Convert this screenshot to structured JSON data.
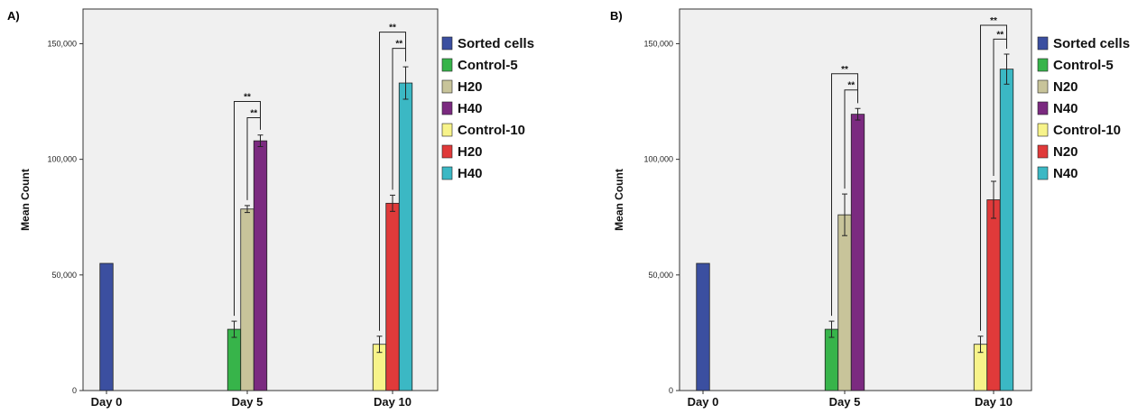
{
  "chart_data": [
    {
      "type": "bar",
      "panel_label": "A)",
      "ylabel": "Mean Count",
      "ylim": [
        0,
        165000
      ],
      "yticks": [
        0,
        50000,
        100000,
        150000
      ],
      "ytick_labels": [
        "0",
        "50,000",
        "100,000",
        "150,000"
      ],
      "categories": [
        "Day 0",
        "Day 5",
        "Day 10"
      ],
      "legend_position": "right",
      "series": [
        {
          "name": "Sorted cells",
          "color": "#3b4fa0",
          "category": "Day 0",
          "value": 55000,
          "err": 0
        },
        {
          "name": "Control-5",
          "color": "#37b44a",
          "category": "Day 5",
          "value": 26500,
          "err": 3500
        },
        {
          "name": "H20",
          "color": "#c8c49a",
          "category": "Day 5",
          "value": 78500,
          "err": 1500
        },
        {
          "name": "H40",
          "color": "#7b2a80",
          "category": "Day 5",
          "value": 108000,
          "err": 2500
        },
        {
          "name": "Control-10",
          "color": "#f7f38a",
          "category": "Day 10",
          "value": 20000,
          "err": 3500
        },
        {
          "name": "H20",
          "color": "#e03a3a",
          "category": "Day 10",
          "value": 81000,
          "err": 3500
        },
        {
          "name": "H40",
          "color": "#3bb8c4",
          "category": "Day 10",
          "value": 133000,
          "err": 7000
        }
      ],
      "annotations": [
        {
          "text": "**",
          "category": "Day 5",
          "from_series": 1,
          "to_series": 3,
          "level": 125000
        },
        {
          "text": "**",
          "category": "Day 5",
          "from_series": 2,
          "to_series": 3,
          "level": 118000
        },
        {
          "text": "**",
          "category": "Day 10",
          "from_series": 4,
          "to_series": 6,
          "level": 155000
        },
        {
          "text": "**",
          "category": "Day 10",
          "from_series": 5,
          "to_series": 6,
          "level": 148000
        }
      ]
    },
    {
      "type": "bar",
      "panel_label": "B)",
      "ylabel": "Mean Count",
      "ylim": [
        0,
        165000
      ],
      "yticks": [
        0,
        50000,
        100000,
        150000
      ],
      "ytick_labels": [
        "0",
        "50,000",
        "100,000",
        "150,000"
      ],
      "categories": [
        "Day 0",
        "Day 5",
        "Day 10"
      ],
      "legend_position": "right",
      "series": [
        {
          "name": "Sorted cells",
          "color": "#3b4fa0",
          "category": "Day 0",
          "value": 55000,
          "err": 0
        },
        {
          "name": "Control-5",
          "color": "#37b44a",
          "category": "Day 5",
          "value": 26500,
          "err": 3500
        },
        {
          "name": "N20",
          "color": "#c8c49a",
          "category": "Day 5",
          "value": 76000,
          "err": 9000
        },
        {
          "name": "N40",
          "color": "#7b2a80",
          "category": "Day 5",
          "value": 119500,
          "err": 2500
        },
        {
          "name": "Control-10",
          "color": "#f7f38a",
          "category": "Day 10",
          "value": 20000,
          "err": 3500
        },
        {
          "name": "N20",
          "color": "#e03a3a",
          "category": "Day 10",
          "value": 82500,
          "err": 8000
        },
        {
          "name": "N40",
          "color": "#3bb8c4",
          "category": "Day 10",
          "value": 139000,
          "err": 6500
        }
      ],
      "annotations": [
        {
          "text": "**",
          "category": "Day 5",
          "from_series": 1,
          "to_series": 3,
          "level": 137000
        },
        {
          "text": "**",
          "category": "Day 5",
          "from_series": 2,
          "to_series": 3,
          "level": 130000
        },
        {
          "text": "**",
          "category": "Day 10",
          "from_series": 4,
          "to_series": 6,
          "level": 158000
        },
        {
          "text": "**",
          "category": "Day 10",
          "from_series": 5,
          "to_series": 6,
          "level": 152000
        }
      ]
    }
  ]
}
